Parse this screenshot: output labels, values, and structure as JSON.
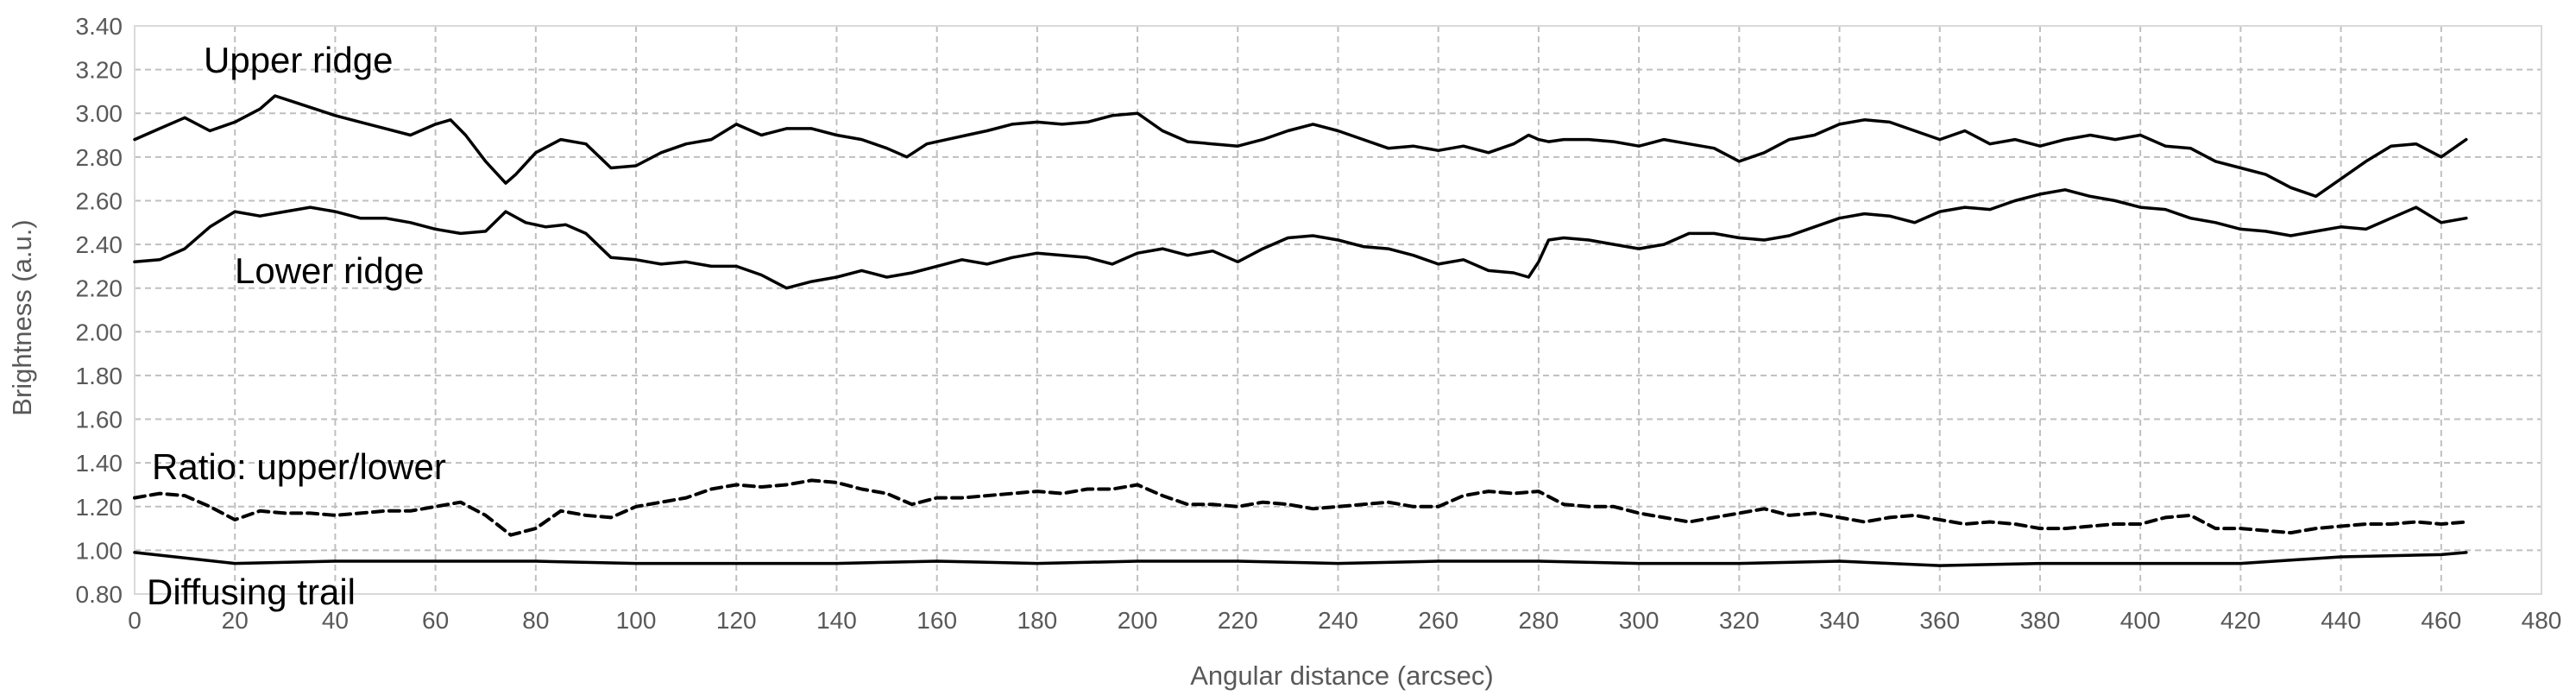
{
  "chart_data": {
    "type": "line",
    "xlabel": "Angular distance (arcsec)",
    "ylabel": "Brightness (a.u.)",
    "xlim": [
      0,
      480
    ],
    "ylim": [
      0.8,
      3.4
    ],
    "x_ticks": [
      "0",
      "20",
      "40",
      "60",
      "80",
      "100",
      "120",
      "140",
      "160",
      "180",
      "200",
      "220",
      "240",
      "260",
      "280",
      "300",
      "320",
      "340",
      "360",
      "380",
      "400",
      "420",
      "440",
      "460",
      "480"
    ],
    "y_ticks": [
      "0.80",
      "1.00",
      "1.20",
      "1.40",
      "1.60",
      "1.80",
      "2.00",
      "2.20",
      "2.40",
      "2.60",
      "2.80",
      "3.00",
      "3.20",
      "3.40"
    ],
    "grid": true,
    "grid_style": "dashed",
    "colors": {
      "line": "#000000",
      "grid": "#bfbfbf",
      "axis": "#d9d9d9",
      "text": "#595959"
    },
    "annotations": [
      "Upper ridge",
      "Lower ridge",
      "Ratio: upper/lower",
      "Diffusing trail"
    ],
    "series": [
      {
        "name": "Upper ridge",
        "style": "solid",
        "x": [
          0,
          5,
          10,
          15,
          20,
          25,
          28,
          32,
          36,
          40,
          45,
          50,
          55,
          60,
          63,
          66,
          70,
          74,
          76,
          80,
          85,
          90,
          95,
          100,
          105,
          110,
          115,
          120,
          125,
          130,
          135,
          140,
          145,
          150,
          154,
          158,
          162,
          166,
          170,
          175,
          180,
          185,
          190,
          195,
          200,
          205,
          210,
          215,
          220,
          225,
          230,
          235,
          240,
          245,
          250,
          255,
          260,
          265,
          270,
          275,
          278,
          280,
          282,
          285,
          290,
          295,
          300,
          305,
          310,
          315,
          320,
          325,
          330,
          335,
          340,
          345,
          350,
          355,
          360,
          365,
          370,
          375,
          380,
          385,
          390,
          395,
          400,
          405,
          410,
          415,
          420,
          425,
          430,
          435,
          440,
          445,
          450,
          455,
          460,
          465
        ],
        "y": [
          2.88,
          2.93,
          2.98,
          2.92,
          2.96,
          3.02,
          3.08,
          3.05,
          3.02,
          2.99,
          2.96,
          2.93,
          2.9,
          2.95,
          2.97,
          2.9,
          2.78,
          2.68,
          2.72,
          2.82,
          2.88,
          2.86,
          2.75,
          2.76,
          2.82,
          2.86,
          2.88,
          2.95,
          2.9,
          2.93,
          2.93,
          2.9,
          2.88,
          2.84,
          2.8,
          2.86,
          2.88,
          2.9,
          2.92,
          2.95,
          2.96,
          2.95,
          2.96,
          2.99,
          3.0,
          2.92,
          2.87,
          2.86,
          2.85,
          2.88,
          2.92,
          2.95,
          2.92,
          2.88,
          2.84,
          2.85,
          2.83,
          2.85,
          2.82,
          2.86,
          2.9,
          2.88,
          2.87,
          2.88,
          2.88,
          2.87,
          2.85,
          2.88,
          2.86,
          2.84,
          2.78,
          2.82,
          2.88,
          2.9,
          2.95,
          2.97,
          2.96,
          2.92,
          2.88,
          2.92,
          2.86,
          2.88,
          2.85,
          2.88,
          2.9,
          2.88,
          2.9,
          2.85,
          2.84,
          2.78,
          2.75,
          2.72,
          2.66,
          2.62,
          2.7,
          2.78,
          2.85,
          2.86,
          2.8,
          2.88
        ]
      },
      {
        "name": "Lower ridge",
        "style": "solid",
        "x": [
          0,
          5,
          10,
          15,
          20,
          25,
          30,
          35,
          40,
          45,
          50,
          55,
          60,
          65,
          70,
          74,
          78,
          82,
          86,
          90,
          95,
          100,
          105,
          110,
          115,
          120,
          125,
          130,
          135,
          140,
          145,
          150,
          155,
          160,
          165,
          170,
          175,
          180,
          185,
          190,
          195,
          200,
          205,
          210,
          215,
          220,
          225,
          230,
          235,
          240,
          245,
          250,
          255,
          260,
          265,
          270,
          275,
          278,
          280,
          282,
          285,
          290,
          295,
          300,
          305,
          310,
          315,
          320,
          325,
          330,
          335,
          340,
          345,
          350,
          355,
          360,
          365,
          370,
          375,
          380,
          385,
          390,
          395,
          400,
          405,
          410,
          415,
          420,
          425,
          430,
          435,
          440,
          445,
          450,
          455,
          460,
          465
        ],
        "y": [
          2.32,
          2.33,
          2.38,
          2.48,
          2.55,
          2.53,
          2.55,
          2.57,
          2.55,
          2.52,
          2.52,
          2.5,
          2.47,
          2.45,
          2.46,
          2.55,
          2.5,
          2.48,
          2.49,
          2.45,
          2.34,
          2.33,
          2.31,
          2.32,
          2.3,
          2.3,
          2.26,
          2.2,
          2.23,
          2.25,
          2.28,
          2.25,
          2.27,
          2.3,
          2.33,
          2.31,
          2.34,
          2.36,
          2.35,
          2.34,
          2.31,
          2.36,
          2.38,
          2.35,
          2.37,
          2.32,
          2.38,
          2.43,
          2.44,
          2.42,
          2.39,
          2.38,
          2.35,
          2.31,
          2.33,
          2.28,
          2.27,
          2.25,
          2.32,
          2.42,
          2.43,
          2.42,
          2.4,
          2.38,
          2.4,
          2.45,
          2.45,
          2.43,
          2.42,
          2.44,
          2.48,
          2.52,
          2.54,
          2.53,
          2.5,
          2.55,
          2.57,
          2.56,
          2.6,
          2.63,
          2.65,
          2.62,
          2.6,
          2.57,
          2.56,
          2.52,
          2.5,
          2.47,
          2.46,
          2.44,
          2.46,
          2.48,
          2.47,
          2.52,
          2.57,
          2.5,
          2.52
        ]
      },
      {
        "name": "Ratio: upper/lower",
        "style": "dashed",
        "x": [
          0,
          5,
          10,
          15,
          20,
          25,
          30,
          35,
          40,
          45,
          50,
          55,
          60,
          65,
          70,
          75,
          80,
          85,
          90,
          95,
          100,
          105,
          110,
          115,
          120,
          125,
          130,
          135,
          140,
          145,
          150,
          155,
          160,
          165,
          170,
          175,
          180,
          185,
          190,
          195,
          200,
          205,
          210,
          215,
          220,
          225,
          230,
          235,
          240,
          245,
          250,
          255,
          260,
          265,
          270,
          275,
          280,
          285,
          290,
          295,
          300,
          305,
          310,
          315,
          320,
          325,
          330,
          335,
          340,
          345,
          350,
          355,
          360,
          365,
          370,
          375,
          380,
          385,
          390,
          395,
          400,
          405,
          410,
          415,
          420,
          425,
          430,
          435,
          440,
          445,
          450,
          455,
          460,
          465
        ],
        "y": [
          1.24,
          1.26,
          1.25,
          1.2,
          1.14,
          1.18,
          1.17,
          1.17,
          1.16,
          1.17,
          1.18,
          1.18,
          1.2,
          1.22,
          1.16,
          1.07,
          1.1,
          1.18,
          1.16,
          1.15,
          1.2,
          1.22,
          1.24,
          1.28,
          1.3,
          1.29,
          1.3,
          1.32,
          1.31,
          1.28,
          1.26,
          1.21,
          1.24,
          1.24,
          1.25,
          1.26,
          1.27,
          1.26,
          1.28,
          1.28,
          1.3,
          1.25,
          1.21,
          1.21,
          1.2,
          1.22,
          1.21,
          1.19,
          1.2,
          1.21,
          1.22,
          1.2,
          1.2,
          1.25,
          1.27,
          1.26,
          1.27,
          1.21,
          1.2,
          1.2,
          1.17,
          1.15,
          1.13,
          1.15,
          1.17,
          1.19,
          1.16,
          1.17,
          1.15,
          1.13,
          1.15,
          1.16,
          1.14,
          1.12,
          1.13,
          1.12,
          1.1,
          1.1,
          1.11,
          1.12,
          1.12,
          1.15,
          1.16,
          1.1,
          1.1,
          1.09,
          1.08,
          1.1,
          1.11,
          1.12,
          1.12,
          1.13,
          1.12,
          1.13
        ]
      },
      {
        "name": "Diffusing trail",
        "style": "solid",
        "x": [
          0,
          20,
          40,
          60,
          80,
          100,
          120,
          140,
          160,
          180,
          200,
          220,
          240,
          260,
          280,
          300,
          320,
          340,
          360,
          380,
          400,
          420,
          440,
          460,
          465
        ],
        "y": [
          0.99,
          0.94,
          0.95,
          0.95,
          0.95,
          0.94,
          0.94,
          0.94,
          0.95,
          0.94,
          0.95,
          0.95,
          0.94,
          0.95,
          0.95,
          0.94,
          0.94,
          0.95,
          0.93,
          0.94,
          0.94,
          0.94,
          0.97,
          0.98,
          0.99
        ]
      }
    ]
  }
}
